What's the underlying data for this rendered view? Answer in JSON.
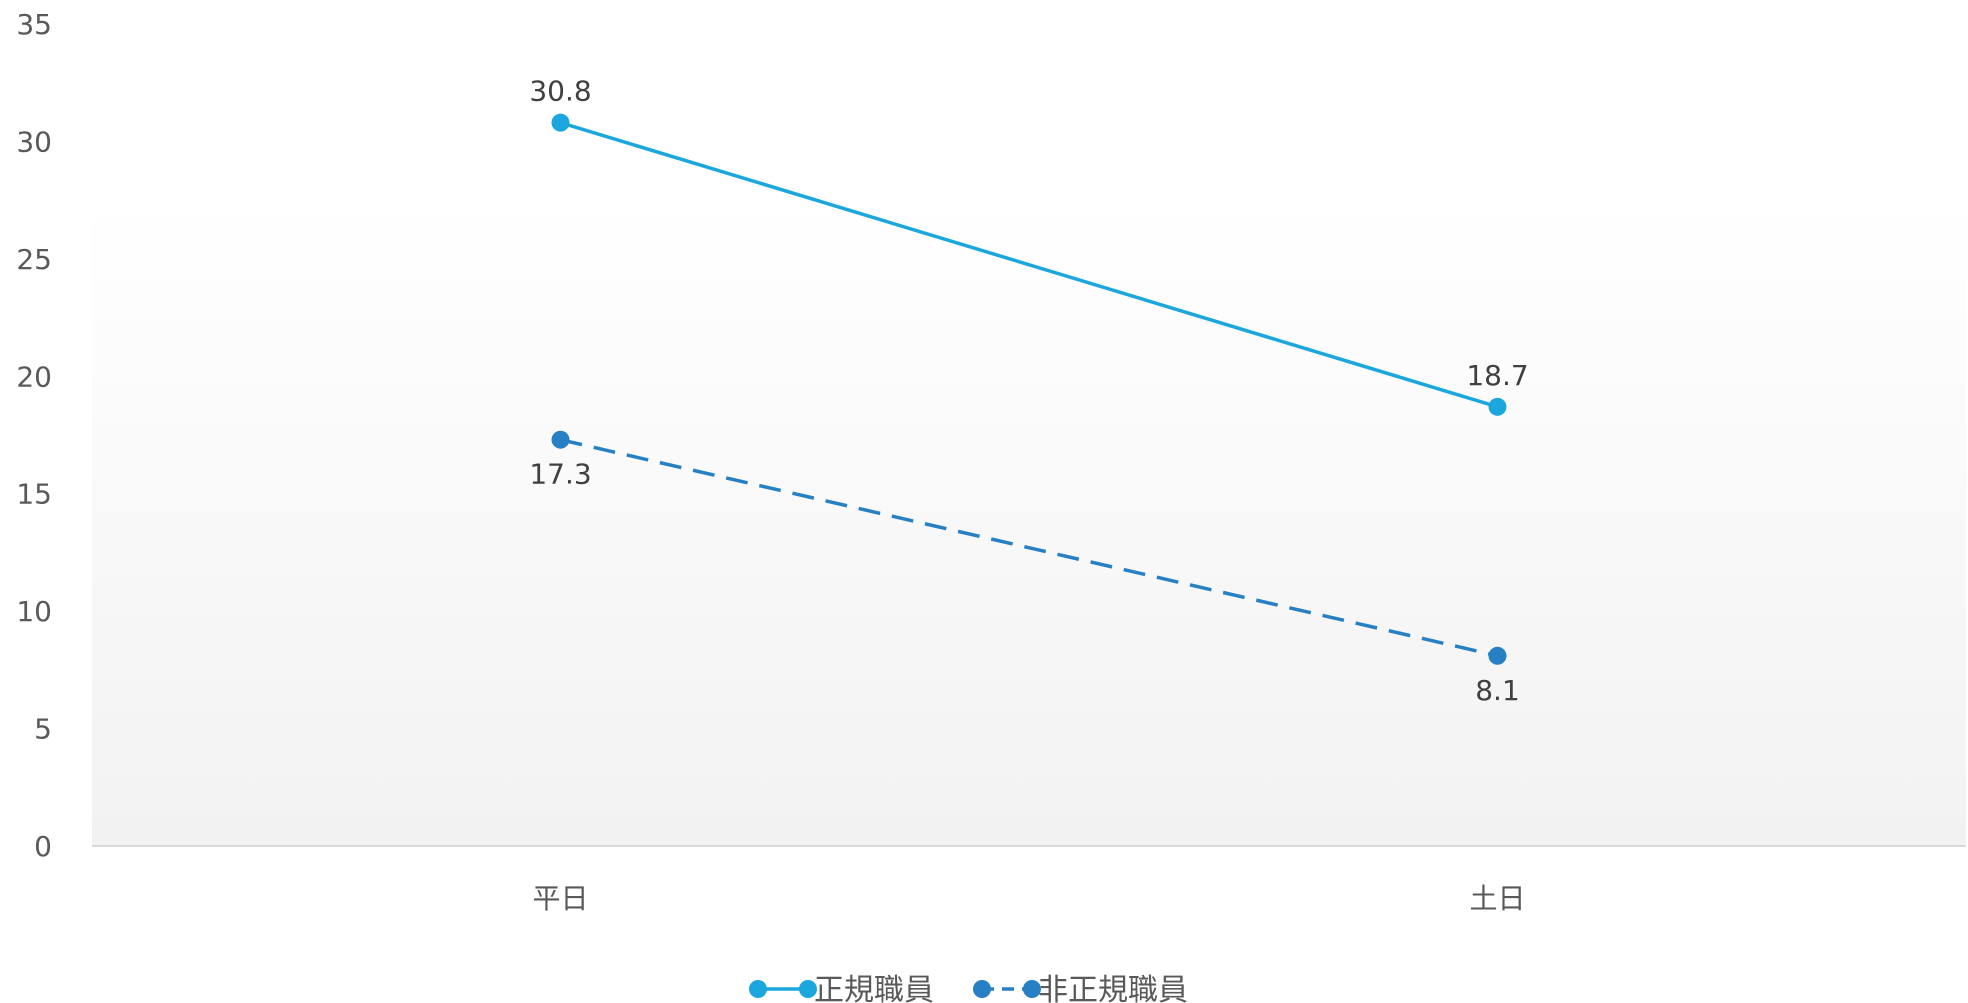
{
  "chart_data": {
    "type": "line",
    "categories": [
      "平日",
      "土日"
    ],
    "series": [
      {
        "name": "正規職員",
        "values": [
          30.8,
          18.7
        ],
        "color": "#1ba7dd",
        "dash": false,
        "label_position": "above"
      },
      {
        "name": "非正規職員",
        "values": [
          17.3,
          8.1
        ],
        "color": "#2880c4",
        "dash": true,
        "label_position": "below"
      }
    ],
    "ylim": [
      0,
      35
    ],
    "yticks": [
      0,
      5,
      10,
      15,
      20,
      25,
      30,
      35
    ],
    "title": "",
    "xlabel": "",
    "ylabel": "",
    "grid": false,
    "legend_position": "bottom",
    "colors": {
      "axis": "#d9d9d9",
      "text": "#595959",
      "plot_bg_top": "#ffffff",
      "plot_bg_bottom": "#f2f2f2"
    }
  }
}
